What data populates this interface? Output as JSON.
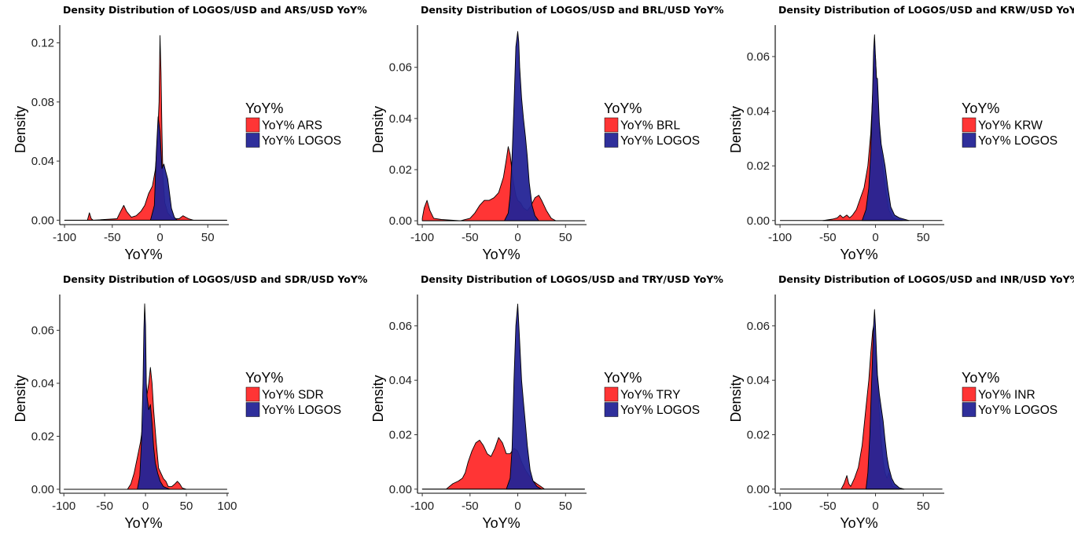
{
  "colors": {
    "red": "#ff2a2a",
    "blue": "#242496",
    "overlap_ars": "#3c0f5a",
    "overlap_brl": "#3c0f5a"
  },
  "chart_data": [
    {
      "type": "area",
      "title": "Density Distribution of LOGOS/USD and ARS/USD YoY%",
      "xlabel": "YoY%",
      "ylabel": "Density",
      "xlim": [
        -105,
        72
      ],
      "ylim": [
        -0.003,
        0.132
      ],
      "xticks": [
        -100,
        -50,
        0,
        50
      ],
      "xtick_labels": [
        "-100",
        "-50",
        "0",
        "50"
      ],
      "yticks": [
        0.0,
        0.04,
        0.08,
        0.12
      ],
      "ytick_labels": [
        "0.00",
        "0.04",
        "0.08",
        "0.12"
      ],
      "legend_title": "YoY%",
      "baseline": [
        -100,
        70
      ],
      "series": [
        {
          "name": "YoY% ARS",
          "color": "#ff2a2a",
          "opacity": 0.95,
          "x": [
            -100,
            -76,
            -74,
            -72,
            -70,
            -45,
            -42,
            -38,
            -35,
            -30,
            -25,
            -20,
            -16,
            -12,
            -8,
            -5,
            -3,
            -1,
            0,
            1,
            2,
            3,
            5,
            8,
            12,
            15,
            20,
            24,
            27,
            30,
            35,
            70
          ],
          "y": [
            0,
            0,
            0.005,
            0.001,
            0,
            0.001,
            0.005,
            0.01,
            0.006,
            0.002,
            0.003,
            0.006,
            0.01,
            0.018,
            0.023,
            0.034,
            0.05,
            0.08,
            0.125,
            0.1,
            0.06,
            0.03,
            0.012,
            0.005,
            0.002,
            0.001,
            0.001,
            0.003,
            0.002,
            0.001,
            0,
            0
          ]
        },
        {
          "name": "YoY% LOGOS",
          "color": "#242496",
          "opacity": 0.95,
          "x": [
            -10,
            -6,
            -4,
            -2,
            0,
            2,
            4,
            6,
            8,
            10,
            12,
            15,
            18
          ],
          "y": [
            0,
            0.01,
            0.045,
            0.07,
            0.06,
            0.035,
            0.038,
            0.033,
            0.028,
            0.018,
            0.008,
            0.002,
            0
          ]
        }
      ]
    },
    {
      "type": "area",
      "title": "Density Distribution of LOGOS/USD and BRL/USD YoY%",
      "xlabel": "YoY%",
      "ylabel": "Density",
      "xlim": [
        -105,
        72
      ],
      "ylim": [
        -0.0015,
        0.0765
      ],
      "xticks": [
        -100,
        -50,
        0,
        50
      ],
      "xtick_labels": [
        "-100",
        "-50",
        "0",
        "50"
      ],
      "yticks": [
        0.0,
        0.02,
        0.04,
        0.06
      ],
      "ytick_labels": [
        "0.00",
        "0.02",
        "0.04",
        "0.06"
      ],
      "legend_title": "YoY%",
      "baseline": [
        -100,
        70
      ],
      "series": [
        {
          "name": "YoY% BRL",
          "color": "#ff2a2a",
          "opacity": 0.95,
          "x": [
            -100,
            -98,
            -95,
            -92,
            -88,
            -80,
            -60,
            -50,
            -45,
            -40,
            -35,
            -30,
            -25,
            -20,
            -15,
            -12,
            -10,
            -8,
            -5,
            -2,
            0,
            3,
            6,
            10,
            14,
            18,
            22,
            25,
            30,
            35,
            40,
            70
          ],
          "y": [
            0.001,
            0.005,
            0.008,
            0.004,
            0.001,
            0.0005,
            0,
            0.001,
            0.003,
            0.006,
            0.008,
            0.008,
            0.009,
            0.011,
            0.017,
            0.024,
            0.029,
            0.026,
            0.016,
            0.01,
            0.008,
            0.007,
            0.005,
            0.004,
            0.006,
            0.009,
            0.01,
            0.008,
            0.004,
            0.001,
            0,
            0
          ]
        },
        {
          "name": "YoY% LOGOS",
          "color": "#242496",
          "opacity": 0.95,
          "x": [
            -14,
            -10,
            -8,
            -6,
            -4,
            -2,
            0,
            1,
            2,
            4,
            6,
            8,
            10,
            12,
            15,
            18,
            22
          ],
          "y": [
            0,
            0.003,
            0.01,
            0.025,
            0.045,
            0.068,
            0.074,
            0.07,
            0.06,
            0.048,
            0.04,
            0.033,
            0.025,
            0.015,
            0.006,
            0.002,
            0
          ]
        }
      ]
    },
    {
      "type": "area",
      "title": "Density Distribution of LOGOS/USD and KRW/USD YoY%",
      "xlabel": "YoY%",
      "ylabel": "Density",
      "xlim": [
        -105,
        72
      ],
      "ylim": [
        -0.0015,
        0.0715
      ],
      "xticks": [
        -100,
        -50,
        0,
        50
      ],
      "xtick_labels": [
        "-100",
        "-50",
        "0",
        "50"
      ],
      "yticks": [
        0.0,
        0.02,
        0.04,
        0.06
      ],
      "ytick_labels": [
        "0.00",
        "0.02",
        "0.04",
        "0.06"
      ],
      "legend_title": "YoY%",
      "baseline": [
        -100,
        70
      ],
      "series": [
        {
          "name": "YoY% KRW",
          "color": "#ff2a2a",
          "opacity": 0.95,
          "x": [
            -55,
            -45,
            -40,
            -37,
            -34,
            -30,
            -27,
            -24,
            -20,
            -16,
            -12,
            -8,
            -5,
            -3,
            -2,
            -1,
            0,
            1,
            2,
            3,
            5,
            8,
            11,
            14,
            18,
            22,
            28
          ],
          "y": [
            0,
            0.0005,
            0.001,
            0.002,
            0.001,
            0.002,
            0.001,
            0.002,
            0.004,
            0.008,
            0.012,
            0.02,
            0.032,
            0.046,
            0.055,
            0.062,
            0.06,
            0.052,
            0.046,
            0.04,
            0.028,
            0.018,
            0.01,
            0.004,
            0.001,
            0.0005,
            0
          ]
        },
        {
          "name": "YoY% LOGOS",
          "color": "#242496",
          "opacity": 0.95,
          "x": [
            -14,
            -10,
            -7,
            -5,
            -3,
            -2,
            -1,
            0,
            1,
            2,
            4,
            6,
            8,
            10,
            13,
            16,
            20,
            25,
            30,
            35
          ],
          "y": [
            0,
            0.004,
            0.012,
            0.025,
            0.048,
            0.062,
            0.068,
            0.06,
            0.052,
            0.052,
            0.036,
            0.028,
            0.024,
            0.02,
            0.012,
            0.005,
            0.002,
            0.001,
            0.0005,
            0
          ]
        }
      ]
    },
    {
      "type": "area",
      "title": "Density Distribution of LOGOS/USD and SDR/USD YoY%",
      "xlabel": "YoY%",
      "ylabel": "Density",
      "xlim": [
        -105,
        102
      ],
      "ylim": [
        -0.0015,
        0.0735
      ],
      "xticks": [
        -100,
        -50,
        0,
        50,
        100
      ],
      "xtick_labels": [
        "-100",
        "-50",
        "0",
        "50",
        "100"
      ],
      "yticks": [
        0.0,
        0.02,
        0.04,
        0.06
      ],
      "ytick_labels": [
        "0.00",
        "0.02",
        "0.04",
        "0.06"
      ],
      "legend_title": "YoY%",
      "baseline": [
        -100,
        100
      ],
      "series": [
        {
          "name": "YoY% SDR",
          "color": "#ff2a2a",
          "opacity": 0.95,
          "x": [
            -22,
            -18,
            -14,
            -10,
            -6,
            -3,
            -1,
            0,
            2,
            4,
            6,
            8,
            10,
            13,
            16,
            19,
            22,
            25,
            28,
            32,
            36,
            39,
            42,
            45,
            50
          ],
          "y": [
            0,
            0.002,
            0.006,
            0.012,
            0.018,
            0.025,
            0.03,
            0.032,
            0.036,
            0.04,
            0.046,
            0.04,
            0.03,
            0.018,
            0.008,
            0.006,
            0.004,
            0.003,
            0.001,
            0.001,
            0.002,
            0.003,
            0.002,
            0.0005,
            0
          ]
        },
        {
          "name": "YoY% LOGOS",
          "color": "#242496",
          "opacity": 0.95,
          "x": [
            -10,
            -7,
            -5,
            -3,
            -2,
            -1,
            0,
            1,
            2,
            4,
            6,
            8,
            10,
            12,
            15,
            18,
            22,
            26,
            30
          ],
          "y": [
            0,
            0.005,
            0.018,
            0.04,
            0.06,
            0.07,
            0.062,
            0.04,
            0.035,
            0.03,
            0.032,
            0.025,
            0.016,
            0.01,
            0.006,
            0.003,
            0.001,
            0.0005,
            0
          ]
        }
      ]
    },
    {
      "type": "area",
      "title": "Density Distribution of LOGOS/USD and TRY/USD YoY%",
      "xlabel": "YoY%",
      "ylabel": "Density",
      "xlim": [
        -105,
        72
      ],
      "ylim": [
        -0.0015,
        0.0715
      ],
      "xticks": [
        -100,
        -50,
        0,
        50
      ],
      "xtick_labels": [
        "-100",
        "-50",
        "0",
        "50"
      ],
      "yticks": [
        0.0,
        0.02,
        0.04,
        0.06
      ],
      "ytick_labels": [
        "0.00",
        "0.02",
        "0.04",
        "0.06"
      ],
      "legend_title": "YoY%",
      "baseline": [
        -100,
        70
      ],
      "series": [
        {
          "name": "YoY% TRY",
          "color": "#ff2a2a",
          "opacity": 0.95,
          "x": [
            -100,
            -75,
            -68,
            -62,
            -58,
            -55,
            -52,
            -48,
            -44,
            -40,
            -36,
            -32,
            -28,
            -24,
            -20,
            -16,
            -12,
            -8,
            -4,
            0,
            4,
            8,
            12,
            16,
            20,
            24,
            28,
            40,
            70
          ],
          "y": [
            0,
            0,
            0.002,
            0.003,
            0.004,
            0.006,
            0.01,
            0.014,
            0.017,
            0.018,
            0.016,
            0.013,
            0.012,
            0.015,
            0.019,
            0.017,
            0.013,
            0.013,
            0.015,
            0.014,
            0.01,
            0.007,
            0.005,
            0.003,
            0.002,
            0.001,
            0,
            0,
            0
          ]
        },
        {
          "name": "YoY% LOGOS",
          "color": "#242496",
          "opacity": 0.95,
          "x": [
            -12,
            -8,
            -6,
            -4,
            -2,
            0,
            2,
            4,
            6,
            8,
            10,
            13,
            16,
            20,
            25
          ],
          "y": [
            0,
            0.004,
            0.015,
            0.04,
            0.06,
            0.068,
            0.054,
            0.04,
            0.032,
            0.024,
            0.016,
            0.007,
            0.003,
            0.001,
            0
          ]
        }
      ]
    },
    {
      "type": "area",
      "title": "Density Distribution of LOGOS/USD and INR/USD YoY%",
      "xlabel": "YoY%",
      "ylabel": "Density",
      "xlim": [
        -105,
        72
      ],
      "ylim": [
        -0.0015,
        0.0715
      ],
      "xticks": [
        -100,
        -50,
        0,
        50
      ],
      "xtick_labels": [
        "-100",
        "-50",
        "0",
        "50"
      ],
      "yticks": [
        0.0,
        0.02,
        0.04,
        0.06
      ],
      "ytick_labels": [
        "0.00",
        "0.02",
        "0.04",
        "0.06"
      ],
      "legend_title": "YoY%",
      "baseline": [
        -100,
        70
      ],
      "series": [
        {
          "name": "YoY% INR",
          "color": "#ff2a2a",
          "opacity": 0.95,
          "x": [
            -36,
            -33,
            -30,
            -28,
            -26,
            -22,
            -18,
            -14,
            -10,
            -7,
            -5,
            -3,
            -2,
            -1,
            0,
            2,
            4,
            6,
            8,
            10,
            12,
            14,
            16,
            18,
            22,
            25
          ],
          "y": [
            0,
            0.002,
            0.005,
            0.002,
            0.001,
            0.004,
            0.008,
            0.016,
            0.03,
            0.04,
            0.05,
            0.058,
            0.06,
            0.055,
            0.05,
            0.04,
            0.028,
            0.018,
            0.01,
            0.006,
            0.004,
            0.006,
            0.003,
            0.001,
            0.0005,
            0
          ]
        },
        {
          "name": "YoY% LOGOS",
          "color": "#242496",
          "opacity": 0.95,
          "x": [
            -10,
            -8,
            -6,
            -4,
            -2,
            -1,
            0,
            1,
            2,
            4,
            6,
            8,
            10,
            12,
            14,
            17,
            20,
            25,
            30
          ],
          "y": [
            0,
            0.006,
            0.02,
            0.04,
            0.06,
            0.066,
            0.06,
            0.05,
            0.042,
            0.035,
            0.03,
            0.025,
            0.018,
            0.012,
            0.008,
            0.004,
            0.002,
            0.0005,
            0
          ]
        }
      ]
    }
  ]
}
